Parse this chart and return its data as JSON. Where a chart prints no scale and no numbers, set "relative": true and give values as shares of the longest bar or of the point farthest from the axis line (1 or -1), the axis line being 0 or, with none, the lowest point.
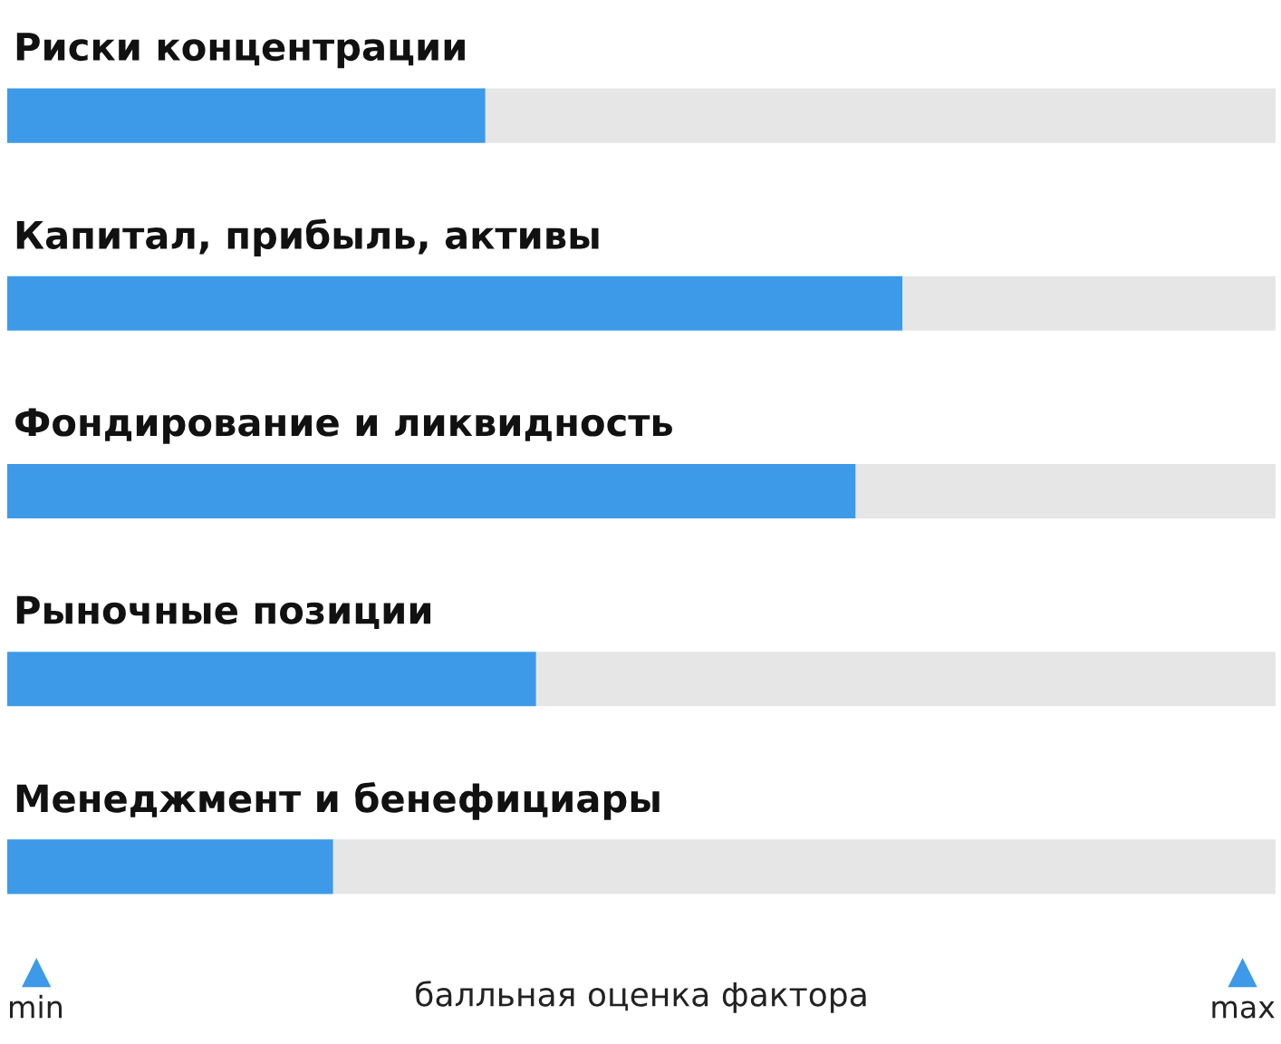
{
  "chart_data": {
    "type": "bar",
    "orientation": "horizontal",
    "stacked": true,
    "categories": [
      "Риски концентрации",
      "Капитал, прибыль, активы",
      "Фондирование и ликвидность",
      "Рыночные позиции",
      "Менеджмент и бенефициары"
    ],
    "series": [
      {
        "color": "#3d9ae8",
        "values": [
          0.377,
          0.706,
          0.669,
          0.417,
          0.257
        ]
      },
      {
        "color": "#e6e6e6",
        "values": [
          0.623,
          0.294,
          0.331,
          0.583,
          0.743
        ]
      }
    ],
    "relative": true,
    "annotations": [
      "min",
      "max"
    ],
    "xlabel": "балльная оценка фактора",
    "legend": false
  }
}
